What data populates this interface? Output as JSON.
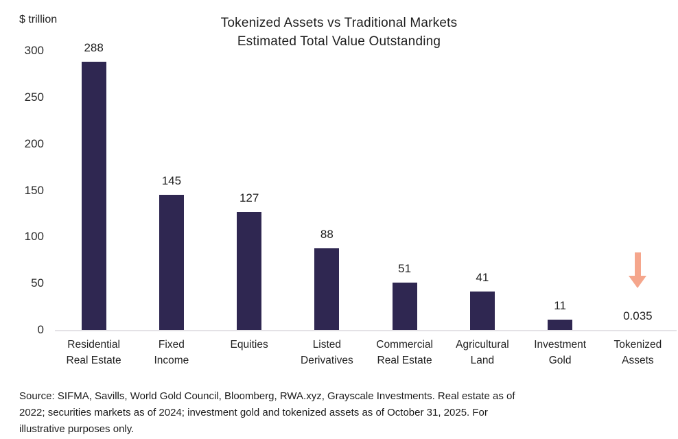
{
  "header": {
    "title_line1": "Tokenized Assets vs Traditional Markets",
    "title_line2": "Estimated Total Value Outstanding",
    "y_axis_unit": "$ trillion"
  },
  "chart_data": {
    "type": "bar",
    "title": "Tokenized Assets vs Traditional Markets Estimated Total Value Outstanding",
    "xlabel": "",
    "ylabel": "$ trillion",
    "ylim": [
      0,
      300
    ],
    "yticks": [
      0,
      50,
      100,
      150,
      200,
      250,
      300
    ],
    "grid": false,
    "legend": "none",
    "categories": [
      "Residential Real Estate",
      "Fixed Income",
      "Equities",
      "Listed Derivatives",
      "Commercial Real Estate",
      "Agricultural Land",
      "Investment Gold",
      "Tokenized Assets"
    ],
    "category_lines": [
      [
        "Residential",
        "Real Estate"
      ],
      [
        "Fixed",
        "Income"
      ],
      [
        "Equities"
      ],
      [
        "Listed",
        "Derivatives"
      ],
      [
        "Commercial",
        "Real Estate"
      ],
      [
        "Agricultural",
        "Land"
      ],
      [
        "Investment",
        "Gold"
      ],
      [
        "Tokenized",
        "Assets"
      ]
    ],
    "values": [
      288,
      145,
      127,
      88,
      51,
      41,
      11,
      0.035
    ],
    "value_labels": [
      "288",
      "145",
      "127",
      "88",
      "51",
      "41",
      "11",
      "0.035"
    ],
    "annotations": [
      {
        "type": "arrow-down",
        "category": "Tokenized Assets",
        "category_index": 7
      }
    ]
  },
  "colors": {
    "bar": "#2f2751",
    "arrow": "#f5a68c",
    "axis_line": "#e4e2e6",
    "text": "#1e1e1e"
  },
  "footer": {
    "source_lines": [
      "Source: SIFMA, Savills, World Gold Council, Bloomberg, RWA.xyz, Grayscale Investments. Real estate as of",
      "2022; securities markets as of 2024; investment gold and tokenized assets as of October 31, 2025. For",
      "illustrative purposes only."
    ]
  }
}
